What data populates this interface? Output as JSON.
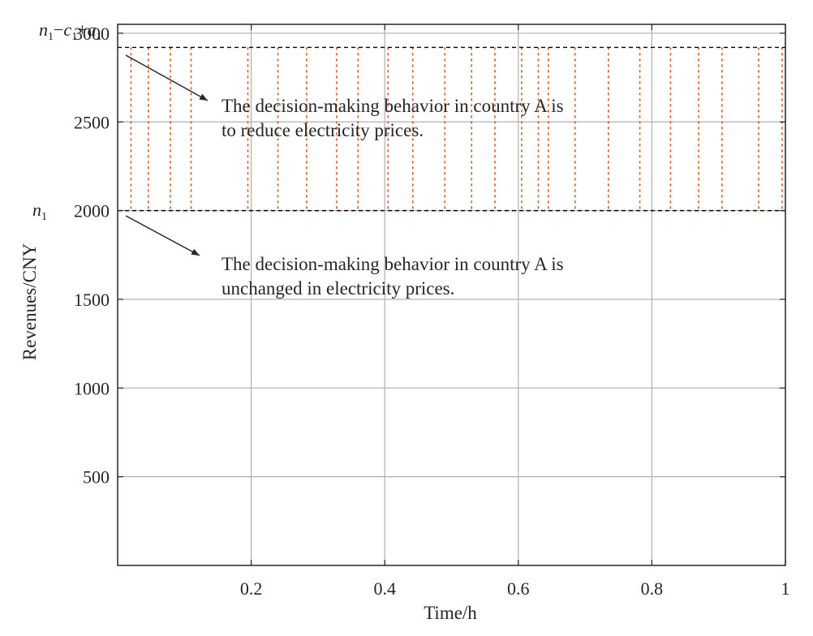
{
  "chart_data": {
    "type": "line",
    "xlabel": "Time/h",
    "ylabel": "Revenues/CNY",
    "xlim": [
      0,
      1
    ],
    "ylim": [
      0,
      3050
    ],
    "xticks": [
      {
        "value": 0.2,
        "label": "0.2"
      },
      {
        "value": 0.4,
        "label": "0.4"
      },
      {
        "value": 0.6,
        "label": "0.6"
      },
      {
        "value": 0.8,
        "label": "0.8"
      },
      {
        "value": 1.0,
        "label": "1"
      }
    ],
    "yticks": [
      {
        "value": 500,
        "label": "500"
      },
      {
        "value": 1000,
        "label": "1000"
      },
      {
        "value": 1500,
        "label": "1500"
      },
      {
        "value": 2000,
        "label": "2000"
      },
      {
        "value": 2500,
        "label": "2500"
      },
      {
        "value": 3000,
        "label": "3000"
      }
    ],
    "grid": true,
    "reference_lines": [
      {
        "name": "n1",
        "value": 2000,
        "style": "dashed",
        "color": "#000000"
      },
      {
        "name": "n1-c1+a1",
        "value": 2920,
        "style": "dashed",
        "color": "#000000"
      }
    ],
    "series": [
      {
        "style": "dotted-vertical",
        "color": "#D95319",
        "y_low": 2000,
        "y_high": 2920,
        "x": [
          0.02,
          0.046,
          0.079,
          0.11,
          0.195,
          0.24,
          0.283,
          0.328,
          0.36,
          0.405,
          0.442,
          0.49,
          0.53,
          0.565,
          0.605,
          0.63,
          0.645,
          0.685,
          0.735,
          0.782,
          0.828,
          0.87,
          0.905,
          0.96,
          0.995
        ]
      }
    ],
    "ref_labels": {
      "upper": {
        "n": "n",
        "n_sub": "1",
        "minus": "−",
        "c": "c",
        "c_sub": "1",
        "plus": "+",
        "a": "a",
        "a_sub": "1"
      },
      "lower": {
        "n": "n",
        "n_sub": "1"
      }
    },
    "annotations": [
      {
        "lines": [
          "The decision-making behavior in country A is",
          "to reduce electricity prices."
        ]
      },
      {
        "lines": [
          "The decision-making behavior in country A is",
          "unchanged in electricity prices."
        ]
      }
    ],
    "colors": {
      "grid": "#b0b0b0",
      "axis": "#262626",
      "reference": "#000000",
      "series": "#D95319"
    }
  }
}
